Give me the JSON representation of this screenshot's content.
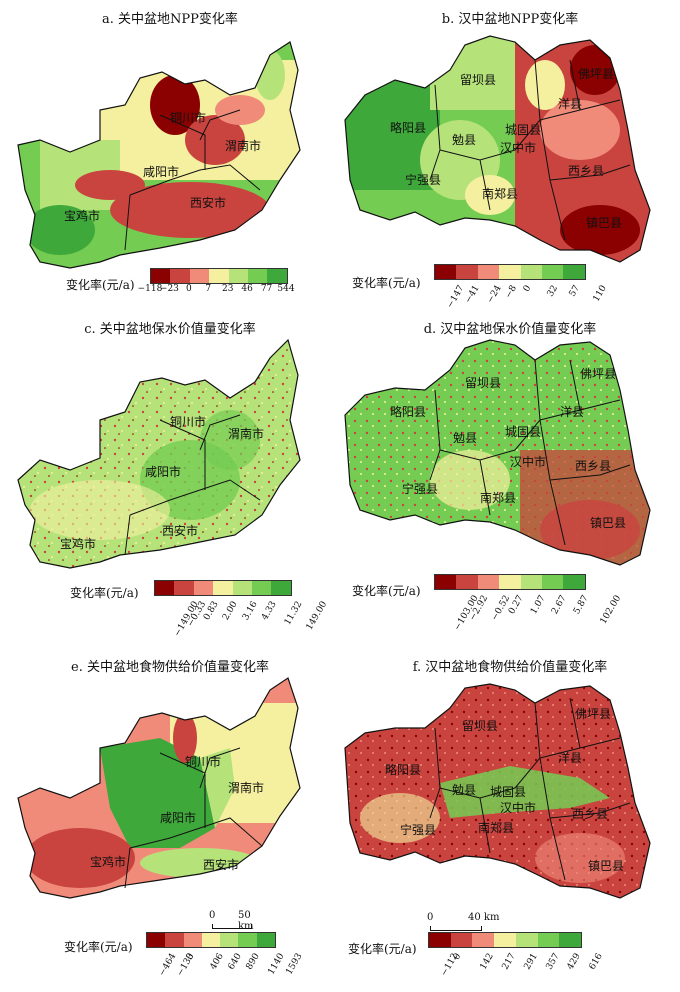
{
  "panels": [
    {
      "id": "a",
      "title": "a. 关中盆地NPP变化率",
      "legend_label": "变化率(元/a)",
      "ticks": [
        "−118",
        "−23",
        "0",
        "7",
        "23",
        "46",
        "77",
        "544"
      ],
      "colors": [
        "#8b0000",
        "#c9443f",
        "#f08b7a",
        "#f5f0a0",
        "#b5e37a",
        "#74cc52",
        "#3fa83a"
      ],
      "places": [
        "铜川市",
        "渭南市",
        "咸阳市",
        "西安市",
        "宝鸡市"
      ]
    },
    {
      "id": "b",
      "title": "b. 汉中盆地NPP变化率",
      "legend_label": "变化率(元/a)",
      "ticks": [
        "−147",
        "−41",
        "−24",
        "−8",
        "0",
        "32",
        "57",
        "110"
      ],
      "colors": [
        "#8b0000",
        "#c9443f",
        "#f08b7a",
        "#f5f0a0",
        "#b5e37a",
        "#74cc52",
        "#3fa83a"
      ],
      "places": [
        "留坝县",
        "佛坪县",
        "洋县",
        "略阳县",
        "勉县",
        "城固县",
        "汉中市",
        "宁强县",
        "南郑县",
        "西乡县",
        "镇巴县"
      ]
    },
    {
      "id": "c",
      "title": "c. 关中盆地保水价值量变化率",
      "legend_label": "变化率(元/a)",
      "ticks": [
        "−149.00",
        "−0.33",
        "0.83",
        "2.00",
        "3.16",
        "4.33",
        "11.32",
        "149.00"
      ],
      "colors": [
        "#8b0000",
        "#c9443f",
        "#f08b7a",
        "#f5f0a0",
        "#b5e37a",
        "#74cc52",
        "#3fa83a"
      ],
      "places": [
        "铜川市",
        "渭南市",
        "咸阳市",
        "西安市",
        "宝鸡市"
      ]
    },
    {
      "id": "d",
      "title": "d. 汉中盆地保水价值量变化率",
      "legend_label": "变化率(元/a)",
      "ticks": [
        "−103.00",
        "−2.92",
        "−0.52",
        "0.27",
        "1.07",
        "2.67",
        "5.87",
        "102.00"
      ],
      "colors": [
        "#8b0000",
        "#c9443f",
        "#f08b7a",
        "#f5f0a0",
        "#b5e37a",
        "#74cc52",
        "#3fa83a"
      ],
      "places": [
        "留坝县",
        "佛坪县",
        "洋县",
        "略阳县",
        "勉县",
        "城固县",
        "汉中市",
        "宁强县",
        "南郑县",
        "西乡县",
        "镇巴县"
      ]
    },
    {
      "id": "e",
      "title": "e. 关中盆地食物供给价值量变化率",
      "legend_label": "变化率(元/a)",
      "ticks": [
        "−464",
        "−133",
        "0",
        "406",
        "640",
        "890",
        "1140",
        "1593"
      ],
      "colors": [
        "#8b0000",
        "#c9443f",
        "#f08b7a",
        "#f5f0a0",
        "#b5e37a",
        "#74cc52",
        "#3fa83a"
      ],
      "places": [
        "铜川市",
        "渭南市",
        "咸阳市",
        "西安市",
        "宝鸡市"
      ],
      "scale": {
        "zero": "0",
        "value": "50 km"
      }
    },
    {
      "id": "f",
      "title": "f. 汉中盆地食物供给价值量变化率",
      "legend_label": "变化率(元/a)",
      "ticks": [
        "−112",
        "0",
        "142",
        "217",
        "291",
        "357",
        "429",
        "616"
      ],
      "colors": [
        "#8b0000",
        "#c9443f",
        "#f08b7a",
        "#f5f0a0",
        "#b5e37a",
        "#74cc52",
        "#3fa83a"
      ],
      "places": [
        "留坝县",
        "佛坪县",
        "洋县",
        "略阳县",
        "勉县",
        "城固县",
        "汉中市",
        "宁强县",
        "南郑县",
        "西乡县",
        "镇巴县"
      ],
      "scale": {
        "zero": "0",
        "value": "40 km"
      }
    }
  ]
}
